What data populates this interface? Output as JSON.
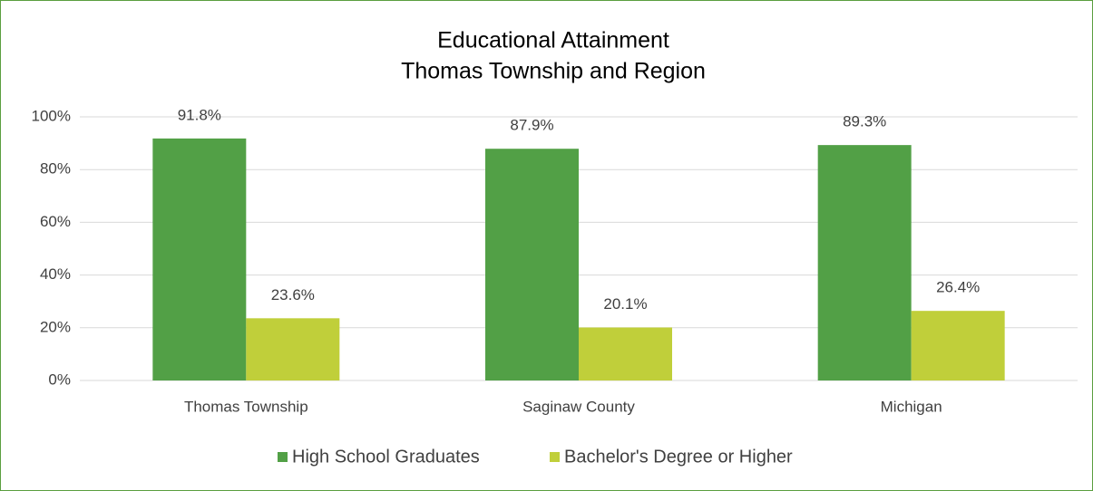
{
  "chart_data": {
    "type": "bar",
    "title": "Educational Attainment",
    "subtitle": "Thomas Township and Region",
    "categories": [
      "Thomas Township",
      "Saginaw County",
      "Michigan"
    ],
    "series": [
      {
        "name": "High School Graduates",
        "color": "#52a046",
        "values": [
          91.8,
          87.9,
          89.3
        ],
        "value_labels": [
          "91.8%",
          "87.9%",
          "89.3%"
        ]
      },
      {
        "name": "Bachelor's Degree or Higher",
        "color": "#c0cf3a",
        "values": [
          23.6,
          20.1,
          26.4
        ],
        "value_labels": [
          "23.6%",
          "20.1%",
          "26.4%"
        ]
      }
    ],
    "ylim": [
      0,
      100
    ],
    "yticks": [
      {
        "value": 0,
        "label": "0%"
      },
      {
        "value": 20,
        "label": "20%"
      },
      {
        "value": 40,
        "label": "40%"
      },
      {
        "value": 60,
        "label": "60%"
      },
      {
        "value": 80,
        "label": "80%"
      },
      {
        "value": 100,
        "label": "100%"
      }
    ],
    "grid": true,
    "legend": "bottom"
  }
}
